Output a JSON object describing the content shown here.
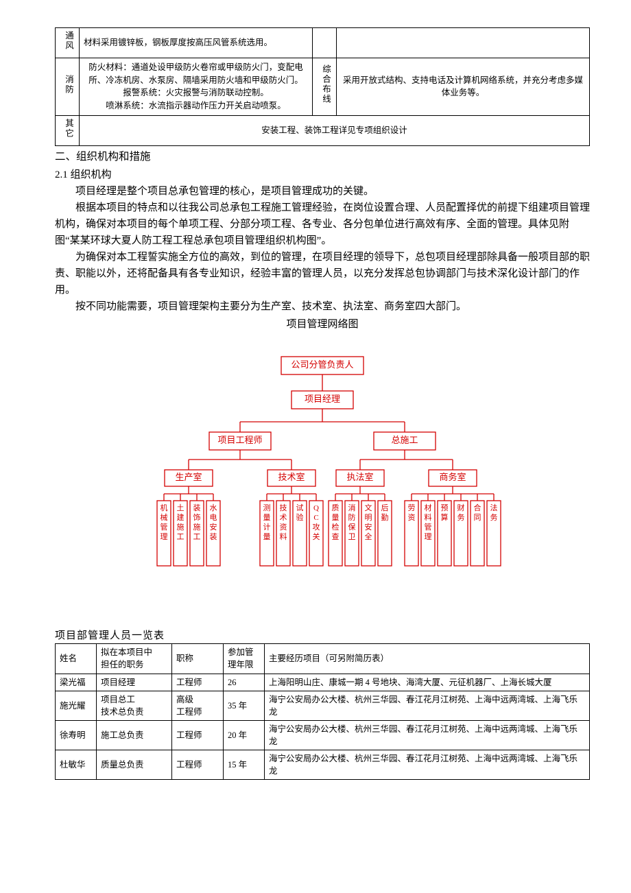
{
  "spec_table": {
    "rows": [
      {
        "cat1": "通风",
        "desc1": "材料采用镀锌板，钢板厚度按高压风管系统选用。",
        "cat2": "",
        "desc2": ""
      },
      {
        "cat1": "消防",
        "desc1": "防火材料：通道处设甲级防火卷帘或甲级防火门，变配电所、冷冻机房、水泵房、隔墙采用防火墙和甲级防火门。\n报警系统：火灾报警与消防联动控制。\n喷淋系统：水流指示器动作压力开关启动喷泵。",
        "cat2": "综合布线",
        "desc2": "采用开放式结构、支持电话及计算机网络系统，并充分考虑多媒体业务等。"
      },
      {
        "cat1": "其它",
        "merged": "安装工程、装饰工程详见专项组织设计"
      }
    ]
  },
  "body": {
    "h_section": "二、组织机构和措施",
    "h_sub": "2.1 组织机构",
    "p1": "项目经理是整个项目总承包管理的核心，是项目管理成功的关键。",
    "p2": "根据本项目的特点和以往我公司总承包工程施工管理经验，在岗位设置合理、人员配置择优的前提下组建项目管理机构，确保对本项目的每个单项工程、分部分项工程、各专业、各分包单位进行高效有序、全面的管理。具体见附图“某某环球大夏人防工程工程总承包项目管理组织机构图”。",
    "p3": "为确保对本工程誓实施全方位的高效，到位的管理，在项目经理的领导下，总包项目经理部除具备一般项目部的职责、职能以外，还将配备具有各专业知识，经验丰富的管理人员，以充分发挥总包协调部门与技术深化设计部门的作用。",
    "p4": "按不同功能需要，项目管理架构主要分为生产室、技术室、执法室、商务室四大部门。",
    "diagram_title": "项目管理网络图"
  },
  "org": {
    "color": "#d40000",
    "top": "公司分管负责人",
    "l2": "项目经理",
    "l3": [
      "项目工程师",
      "总施工"
    ],
    "l4": [
      "生产室",
      "技术室",
      "执法室",
      "商务室"
    ],
    "leaves": [
      [
        "机械管理",
        "土建施工",
        "装饰施工",
        "水电安装"
      ],
      [
        "测量计量",
        "技术资料",
        "试验",
        "QC攻关"
      ],
      [
        "质量检查",
        "消防保卫",
        "文明安全",
        "后勤"
      ],
      [
        "劳资",
        "材料管理",
        "预算",
        "财务",
        "合同",
        "法务"
      ]
    ]
  },
  "personnel": {
    "title": "项目部管理人员一览表",
    "headers": [
      "姓名",
      "拟在本项目中\n担任的职务",
      "职称",
      "参加管\n理年限",
      "主要经历项目（可另附简历表）"
    ],
    "col_widths": [
      "60px",
      "110px",
      "75px",
      "60px",
      "auto"
    ],
    "rows": [
      [
        "梁光福",
        "项目经理",
        "工程师",
        "26",
        "上海阳明山庄、康城一期 4 号地块、海湾大厦、元征机器厂、上海长城大厦"
      ],
      [
        "施光耀",
        "项目总工\n技术总负责",
        "高级\n工程师",
        "35 年",
        "海宁公安局办公大楼、杭州三华园、春江花月江树苑、上海中远两湾城、上海飞乐龙"
      ],
      [
        "徐寿明",
        "施工总负责",
        "工程师",
        "20 年",
        "海宁公安局办公大楼、杭州三华园、春江花月江树苑、上海中远两湾城、上海飞乐龙"
      ],
      [
        "杜敏华",
        "质量总负责",
        "工程师",
        "15 年",
        "海宁公安局办公大楼、杭州三华园、春江花月江树苑、上海中远两湾城、上海飞乐龙"
      ]
    ]
  }
}
